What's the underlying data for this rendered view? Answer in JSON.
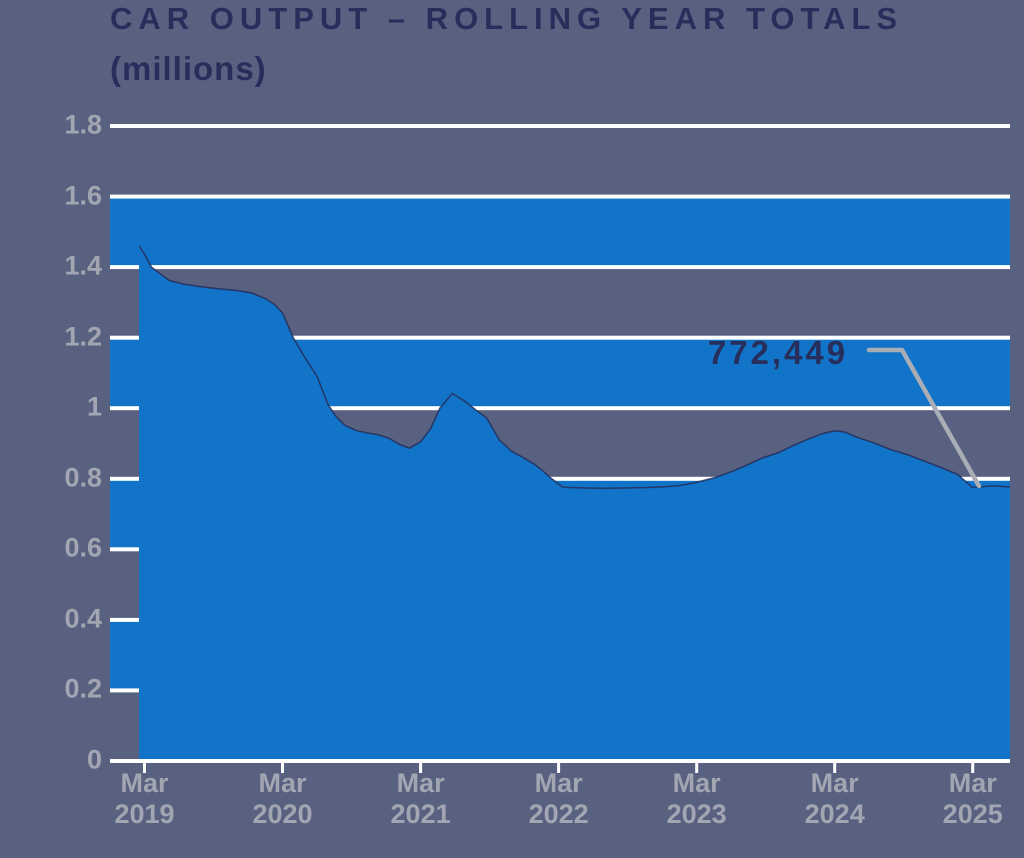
{
  "colors": {
    "background": "#596180",
    "band_blue": "#1274C8",
    "area_blue": "#1274C8",
    "area_edge_navy": "#23305E",
    "gridline_white": "#FFFFFF",
    "text_navy": "#272E5B",
    "axis_label_gray": "#A2A6B2",
    "callout_gray": "#A9ADB6"
  },
  "chart_data": {
    "type": "area",
    "title": "CAR OUTPUT – ROLLING YEAR TOTALS",
    "subtitle": "(millions)",
    "ylim": [
      0,
      1.8
    ],
    "grid": true,
    "y_ticks": [
      {
        "v": 0.0,
        "label": "0"
      },
      {
        "v": 0.2,
        "label": "0.2"
      },
      {
        "v": 0.4,
        "label": "0.4"
      },
      {
        "v": 0.6,
        "label": "0.6"
      },
      {
        "v": 0.8,
        "label": "0.8"
      },
      {
        "v": 1.0,
        "label": "1"
      },
      {
        "v": 1.2,
        "label": "1.2"
      },
      {
        "v": 1.4,
        "label": "1.4"
      },
      {
        "v": 1.6,
        "label": "1.6"
      },
      {
        "v": 1.8,
        "label": "1.8"
      }
    ],
    "x_ticks": [
      {
        "t": 2019.17,
        "line1": "Mar",
        "line2": "2019"
      },
      {
        "t": 2020.17,
        "line1": "Mar",
        "line2": "2020"
      },
      {
        "t": 2021.17,
        "line1": "Mar",
        "line2": "2021"
      },
      {
        "t": 2022.17,
        "line1": "Mar",
        "line2": "2022"
      },
      {
        "t": 2023.17,
        "line1": "Mar",
        "line2": "2023"
      },
      {
        "t": 2024.17,
        "line1": "Mar",
        "line2": "2024"
      },
      {
        "t": 2025.17,
        "line1": "Mar",
        "line2": "2025"
      }
    ],
    "shaded_bands": [
      [
        1.4,
        1.6
      ],
      [
        1.0,
        1.2
      ],
      [
        0.6,
        0.8
      ],
      [
        0.2,
        0.4
      ]
    ],
    "series": [
      {
        "name": "Car output rolling year total (millions)",
        "points": [
          [
            2019.13,
            1.46
          ],
          [
            2019.17,
            1.437
          ],
          [
            2019.22,
            1.4
          ],
          [
            2019.28,
            1.382
          ],
          [
            2019.35,
            1.362
          ],
          [
            2019.45,
            1.352
          ],
          [
            2019.55,
            1.346
          ],
          [
            2019.65,
            1.341
          ],
          [
            2019.75,
            1.337
          ],
          [
            2019.85,
            1.333
          ],
          [
            2019.95,
            1.326
          ],
          [
            2020.04,
            1.312
          ],
          [
            2020.11,
            1.295
          ],
          [
            2020.17,
            1.27
          ],
          [
            2020.25,
            1.198
          ],
          [
            2020.33,
            1.145
          ],
          [
            2020.42,
            1.09
          ],
          [
            2020.5,
            1.01
          ],
          [
            2020.56,
            0.975
          ],
          [
            2020.62,
            0.952
          ],
          [
            2020.7,
            0.937
          ],
          [
            2020.78,
            0.93
          ],
          [
            2020.86,
            0.925
          ],
          [
            2020.94,
            0.915
          ],
          [
            2021.02,
            0.897
          ],
          [
            2021.09,
            0.887
          ],
          [
            2021.17,
            0.905
          ],
          [
            2021.24,
            0.94
          ],
          [
            2021.31,
            1.0
          ],
          [
            2021.4,
            1.042
          ],
          [
            2021.49,
            1.02
          ],
          [
            2021.57,
            0.995
          ],
          [
            2021.65,
            0.972
          ],
          [
            2021.74,
            0.91
          ],
          [
            2021.83,
            0.878
          ],
          [
            2021.91,
            0.861
          ],
          [
            2022.0,
            0.84
          ],
          [
            2022.05,
            0.824
          ],
          [
            2022.12,
            0.8
          ],
          [
            2022.2,
            0.776
          ],
          [
            2022.35,
            0.774
          ],
          [
            2022.5,
            0.773
          ],
          [
            2022.65,
            0.774
          ],
          [
            2022.8,
            0.775
          ],
          [
            2022.92,
            0.777
          ],
          [
            2023.05,
            0.781
          ],
          [
            2023.17,
            0.79
          ],
          [
            2023.3,
            0.803
          ],
          [
            2023.42,
            0.82
          ],
          [
            2023.53,
            0.838
          ],
          [
            2023.64,
            0.858
          ],
          [
            2023.76,
            0.874
          ],
          [
            2023.88,
            0.896
          ],
          [
            2024.0,
            0.916
          ],
          [
            2024.09,
            0.929
          ],
          [
            2024.17,
            0.936
          ],
          [
            2024.24,
            0.933
          ],
          [
            2024.33,
            0.918
          ],
          [
            2024.45,
            0.902
          ],
          [
            2024.58,
            0.882
          ],
          [
            2024.7,
            0.868
          ],
          [
            2024.82,
            0.85
          ],
          [
            2024.94,
            0.832
          ],
          [
            2025.06,
            0.812
          ],
          [
            2025.17,
            0.775
          ],
          [
            2025.31,
            0.78
          ],
          [
            2025.44,
            0.777
          ]
        ]
      }
    ],
    "annotation": {
      "text": "772,449",
      "value_millions": 0.772,
      "x": 2025.17
    }
  }
}
